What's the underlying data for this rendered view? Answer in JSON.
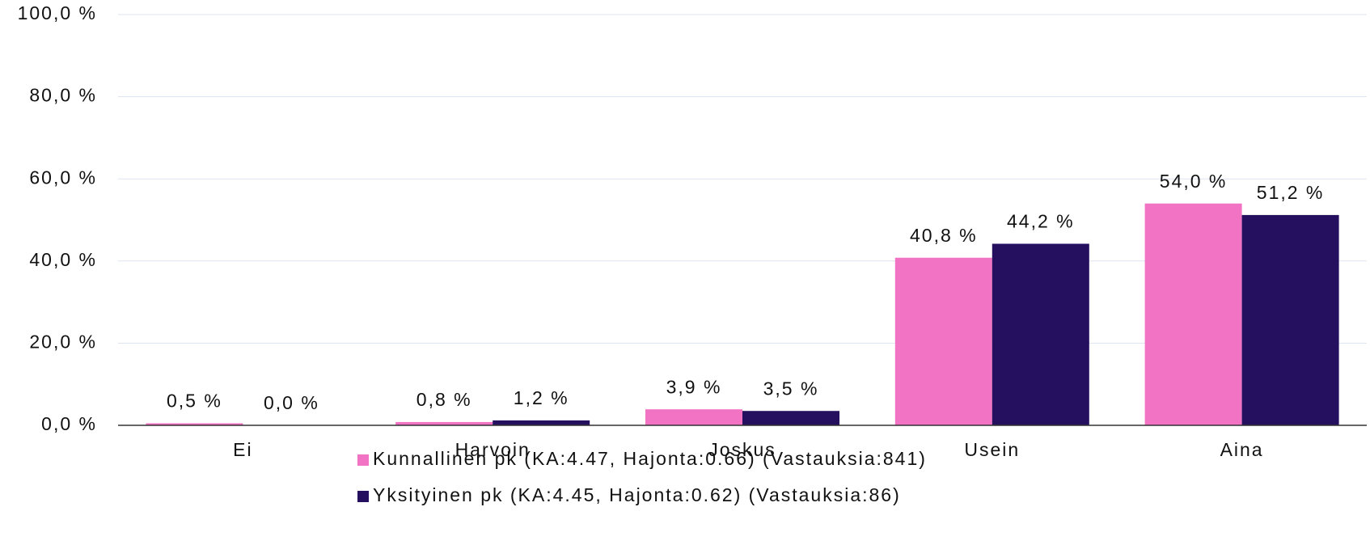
{
  "chart_data": {
    "type": "bar",
    "categories": [
      "Ei",
      "Harvoin",
      "Joskus",
      "Usein",
      "Aina"
    ],
    "series": [
      {
        "name": "Kunnallinen pk (KA:4.47, Hajonta:0.66) (Vastauksia:841)",
        "color": "#f272c4",
        "values": [
          0.5,
          0.8,
          3.9,
          40.8,
          54.0
        ],
        "value_labels": [
          "0,5 %",
          "0,8 %",
          "3,9 %",
          "40,8 %",
          "54,0 %"
        ]
      },
      {
        "name": "Yksityinen pk (KA:4.45, Hajonta:0.62) (Vastauksia:86)",
        "color": "#24105f",
        "values": [
          0.0,
          1.2,
          3.5,
          44.2,
          51.2
        ],
        "value_labels": [
          "0,0 %",
          "1,2 %",
          "3,5 %",
          "44,2 %",
          "51,2 %"
        ]
      }
    ],
    "ylim": [
      0,
      100
    ],
    "yticks": [
      {
        "value": 0,
        "label": "0,0 %"
      },
      {
        "value": 20,
        "label": "20,0 %"
      },
      {
        "value": 40,
        "label": "40,0 %"
      },
      {
        "value": 60,
        "label": "60,0 %"
      },
      {
        "value": 80,
        "label": "80,0 %"
      },
      {
        "value": 100,
        "label": "100,0 %"
      }
    ],
    "grid": true
  }
}
